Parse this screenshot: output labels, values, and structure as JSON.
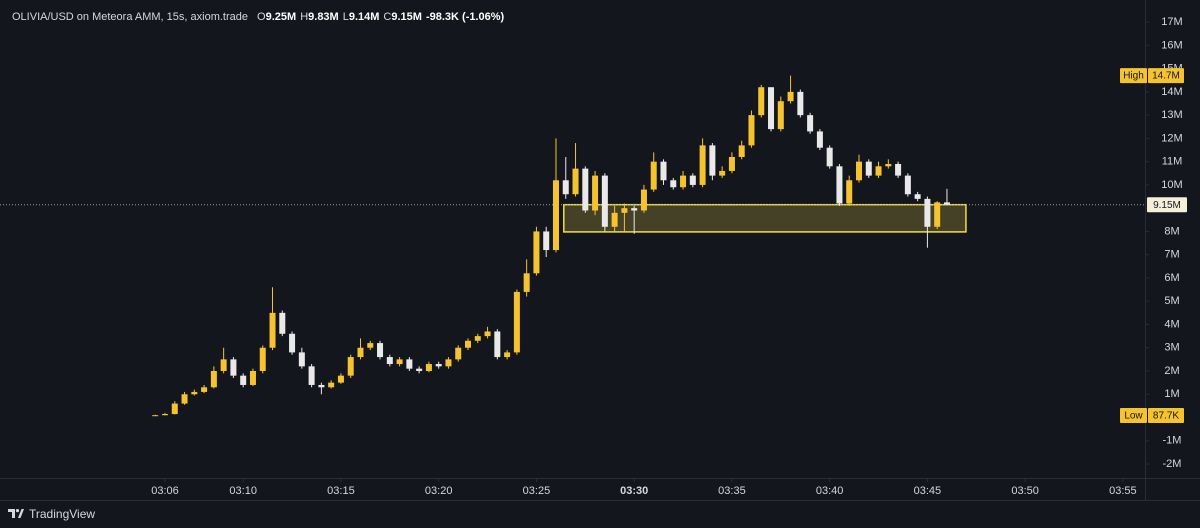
{
  "chart_data": {
    "type": "candlestick",
    "title": "OLIVIA/USD on Meteora AMM, 15s, axiom.trade",
    "legend_ohlc": [
      {
        "label": "O",
        "value": "9.25M"
      },
      {
        "label": "H",
        "value": "9.83M"
      },
      {
        "label": "L",
        "value": "9.14M"
      },
      {
        "label": "C",
        "value": "9.15M"
      }
    ],
    "change": "-98.3K (-1.06%)",
    "brand": "TradingView",
    "up_color": "#f5c330",
    "down_color": "#e9e9ea",
    "x": [
      5.5,
      6,
      6.5,
      7,
      7.5,
      8,
      8.5,
      9,
      9.5,
      10,
      10.5,
      11,
      11.5,
      12,
      12.5,
      13,
      13.5,
      14,
      14.5,
      15,
      15.5,
      16,
      16.5,
      17,
      17.5,
      18,
      18.5,
      19,
      19.5,
      20,
      20.5,
      21,
      21.5,
      22,
      22.5,
      23,
      23.5,
      24,
      24.5,
      25,
      25.5,
      26,
      26.5,
      27,
      27.5,
      28,
      28.5,
      29,
      29.5,
      30,
      30.5,
      31,
      31.5,
      32,
      32.5,
      33,
      33.5,
      34,
      34.5,
      35,
      35.5,
      36,
      36.5,
      37,
      37.5,
      38,
      38.5,
      39,
      39.5,
      40,
      40.5,
      41,
      41.5,
      42,
      42.5,
      43,
      43.5,
      44,
      44.5,
      45,
      45.5,
      46
    ],
    "open": [
      0.09,
      0.1,
      0.15,
      0.6,
      1.0,
      1.1,
      1.3,
      2.0,
      2.5,
      1.8,
      1.4,
      2.0,
      3.0,
      4.5,
      3.6,
      2.8,
      2.2,
      1.4,
      1.3,
      1.5,
      1.8,
      2.6,
      3.0,
      3.2,
      2.6,
      2.3,
      2.5,
      2.1,
      2.0,
      2.3,
      2.2,
      2.5,
      3.0,
      3.3,
      3.5,
      3.7,
      2.6,
      2.8,
      5.4,
      6.2,
      8.0,
      7.2,
      10.2,
      9.6,
      10.7,
      8.9,
      10.4,
      8.2,
      8.8,
      9.0,
      8.9,
      9.8,
      11.0,
      10.2,
      9.9,
      10.4,
      10.0,
      11.7,
      10.4,
      10.6,
      11.2,
      11.7,
      13.0,
      14.2,
      12.4,
      13.6,
      14.0,
      13.0,
      12.3,
      11.6,
      10.8,
      9.2,
      10.2,
      11.0,
      10.4,
      10.8,
      10.9,
      10.4,
      9.6,
      9.4,
      8.2,
      9.25
    ],
    "high": [
      0.12,
      0.2,
      0.7,
      1.1,
      1.2,
      1.4,
      2.2,
      3.0,
      2.6,
      1.9,
      2.1,
      3.1,
      5.6,
      4.6,
      3.7,
      3.0,
      2.3,
      1.5,
      1.6,
      1.9,
      2.7,
      3.4,
      3.3,
      3.3,
      2.7,
      2.6,
      2.6,
      2.2,
      2.4,
      2.4,
      2.6,
      3.1,
      3.4,
      3.6,
      3.9,
      3.8,
      2.9,
      5.5,
      6.8,
      8.2,
      8.2,
      12.0,
      11.2,
      11.8,
      10.8,
      10.6,
      10.5,
      9.1,
      9.2,
      9.1,
      10.0,
      11.4,
      11.1,
      10.3,
      10.6,
      10.5,
      12.0,
      11.8,
      10.8,
      11.4,
      11.9,
      13.2,
      14.3,
      14.2,
      13.8,
      14.7,
      14.1,
      13.1,
      12.4,
      11.7,
      10.9,
      10.4,
      11.3,
      11.1,
      11.0,
      11.1,
      11.0,
      10.5,
      9.7,
      9.5,
      9.3,
      9.83
    ],
    "low": [
      0.0877,
      0.09,
      0.13,
      0.55,
      0.95,
      1.05,
      1.25,
      1.9,
      1.7,
      1.3,
      1.35,
      1.9,
      2.9,
      3.5,
      2.7,
      2.1,
      1.3,
      1.0,
      1.25,
      1.45,
      1.7,
      2.5,
      2.9,
      2.5,
      2.2,
      2.2,
      2.0,
      1.9,
      1.95,
      2.1,
      2.1,
      2.4,
      2.9,
      3.2,
      3.4,
      2.5,
      2.5,
      2.7,
      5.2,
      6.1,
      6.9,
      7.1,
      9.4,
      9.5,
      8.8,
      8.7,
      8.0,
      8.0,
      8.0,
      7.9,
      8.8,
      9.7,
      10.0,
      9.8,
      9.8,
      9.9,
      9.9,
      10.2,
      10.3,
      10.5,
      11.1,
      11.6,
      12.9,
      12.3,
      12.3,
      13.5,
      12.9,
      12.2,
      11.5,
      10.7,
      9.1,
      9.1,
      10.1,
      10.3,
      10.3,
      10.7,
      10.3,
      9.5,
      9.3,
      7.3,
      8.1,
      9.14
    ],
    "close": [
      0.1,
      0.15,
      0.6,
      1.0,
      1.1,
      1.3,
      2.0,
      2.5,
      1.8,
      1.4,
      2.0,
      3.0,
      4.5,
      3.6,
      2.8,
      2.2,
      1.4,
      1.3,
      1.5,
      1.8,
      2.6,
      3.0,
      3.2,
      2.6,
      2.3,
      2.5,
      2.1,
      2.0,
      2.3,
      2.2,
      2.5,
      3.0,
      3.3,
      3.5,
      3.7,
      2.6,
      2.8,
      5.4,
      6.2,
      8.0,
      7.2,
      10.2,
      9.6,
      10.7,
      8.9,
      10.4,
      8.2,
      8.8,
      9.0,
      8.9,
      9.8,
      11.0,
      10.2,
      9.9,
      10.4,
      10.0,
      11.7,
      10.4,
      10.6,
      11.2,
      11.7,
      13.0,
      14.2,
      12.4,
      13.6,
      14.0,
      13.0,
      12.3,
      11.6,
      10.8,
      9.2,
      10.2,
      11.0,
      10.4,
      10.8,
      10.9,
      10.4,
      9.6,
      9.4,
      8.2,
      9.25,
      9.15
    ],
    "xlim": [
      -2.44,
      56.13
    ],
    "ylim": [
      -2.6,
      17.95
    ],
    "xticks": [
      {
        "value": 6,
        "label": "03:06"
      },
      {
        "value": 10,
        "label": "03:10"
      },
      {
        "value": 15,
        "label": "03:15"
      },
      {
        "value": 20,
        "label": "03:20"
      },
      {
        "value": 25,
        "label": "03:25"
      },
      {
        "value": 30,
        "label": "03:30",
        "bold": true
      },
      {
        "value": 35,
        "label": "03:35"
      },
      {
        "value": 40,
        "label": "03:40"
      },
      {
        "value": 45,
        "label": "03:45"
      },
      {
        "value": 50,
        "label": "03:50"
      },
      {
        "value": 55,
        "label": "03:55"
      }
    ],
    "yticks": [
      {
        "value": 17,
        "label": "17M"
      },
      {
        "value": 16,
        "label": "16M"
      },
      {
        "value": 15,
        "label": "15M"
      },
      {
        "value": 14,
        "label": "14M"
      },
      {
        "value": 13,
        "label": "13M"
      },
      {
        "value": 12,
        "label": "12M"
      },
      {
        "value": 11,
        "label": "11M"
      },
      {
        "value": 10,
        "label": "10M"
      },
      {
        "value": 9,
        "label": "9M"
      },
      {
        "value": 8,
        "label": "8M"
      },
      {
        "value": 7,
        "label": "7M"
      },
      {
        "value": 6,
        "label": "6M"
      },
      {
        "value": 5,
        "label": "5M"
      },
      {
        "value": 4,
        "label": "4M"
      },
      {
        "value": 3,
        "label": "3M"
      },
      {
        "value": 2,
        "label": "2M"
      },
      {
        "value": 1,
        "label": "1M"
      },
      {
        "value": -1,
        "label": "-1M"
      },
      {
        "value": -2,
        "label": "-2M"
      }
    ],
    "high_marker": {
      "title": "High",
      "value": 14.7,
      "label": "14.7M"
    },
    "low_marker": {
      "title": "Low",
      "value": 0.0877,
      "label": "87.7K"
    },
    "last_price": {
      "value": 9.15,
      "label": "9.15M"
    },
    "highlight_box": {
      "xlim": [
        26.4,
        46.97
      ],
      "ylim": [
        7.98,
        9.15
      ],
      "color": "#f2dc4a"
    }
  }
}
